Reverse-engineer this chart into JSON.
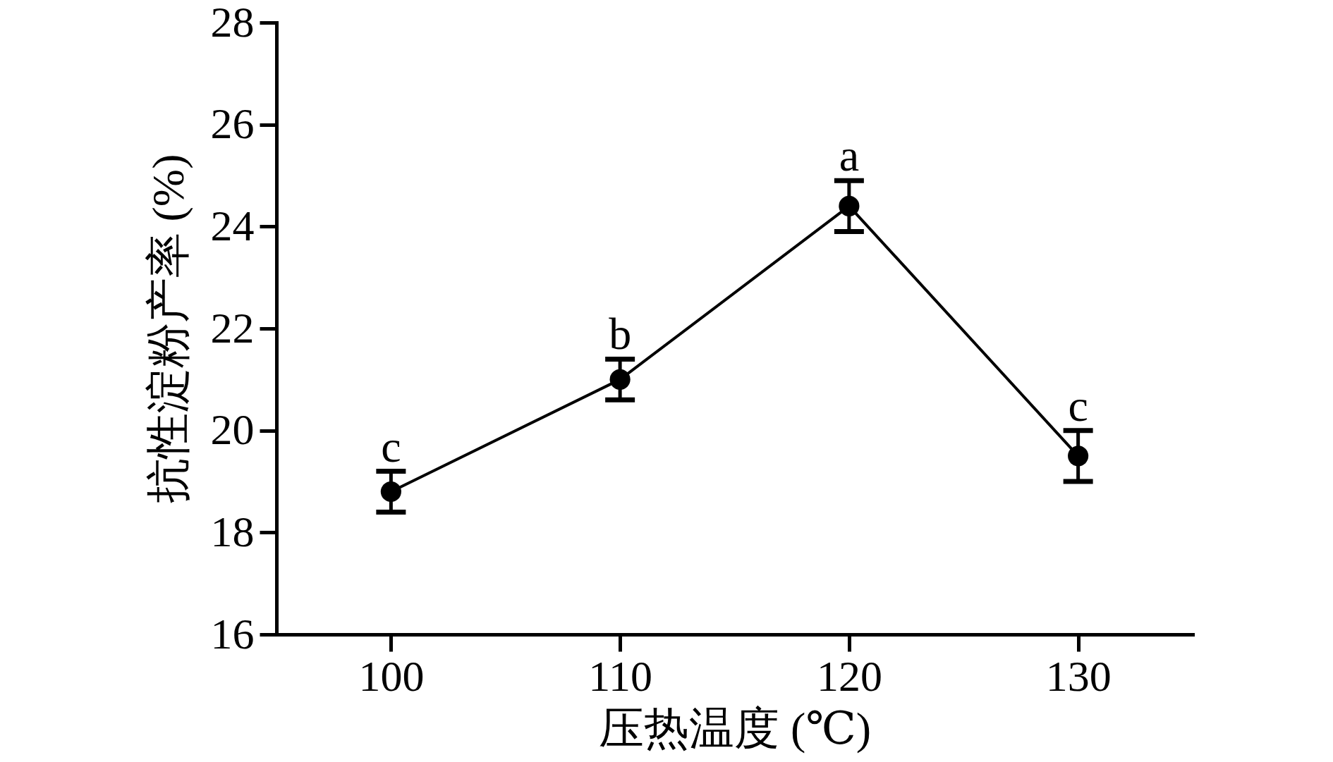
{
  "chart_data": {
    "type": "line",
    "xlabel": "压热温度 (℃)",
    "ylabel": "抗性淀粉产率 (%)",
    "x": [
      100,
      110,
      120,
      130
    ],
    "values": [
      18.8,
      21.0,
      24.4,
      19.5
    ],
    "errors": [
      0.4,
      0.4,
      0.5,
      0.5
    ],
    "color": "#000000",
    "xlim": [
      95,
      135
    ],
    "xticks": [
      100,
      110,
      120,
      130
    ],
    "ylim": [
      16,
      28
    ],
    "yticks": [
      16,
      18,
      20,
      22,
      24,
      26,
      28
    ],
    "grid": false,
    "marker": "circle",
    "line_style": "solid",
    "annotations": [
      {
        "text": "c",
        "x": 100,
        "y": 18.8
      },
      {
        "text": "b",
        "x": 110,
        "y": 21.0
      },
      {
        "text": "a",
        "x": 120,
        "y": 24.4
      },
      {
        "text": "c",
        "x": 130,
        "y": 19.5
      }
    ]
  }
}
